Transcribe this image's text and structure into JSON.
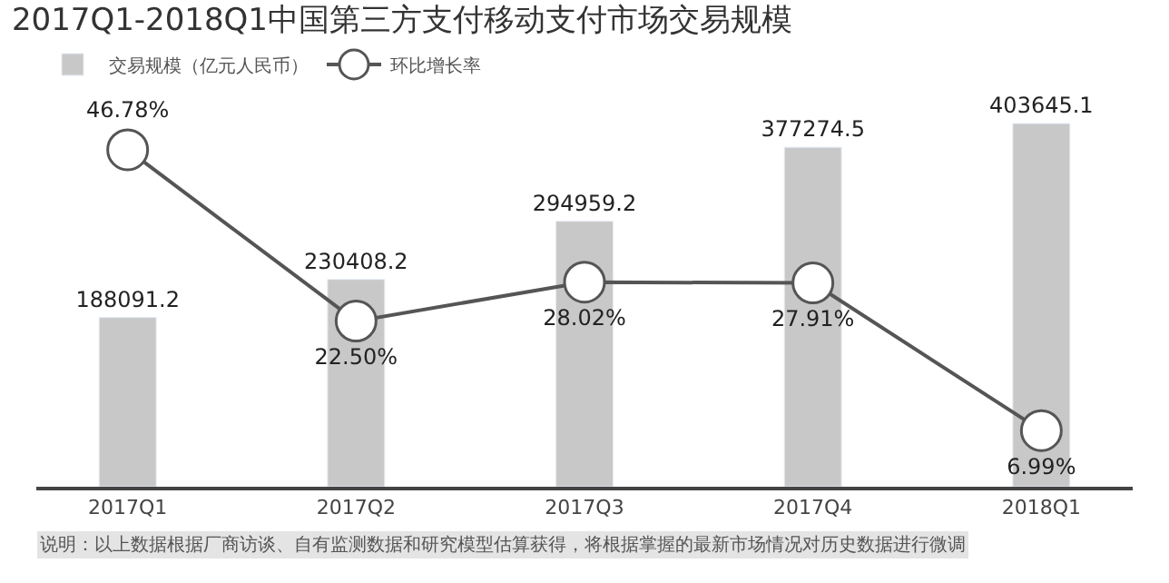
{
  "chart_data": {
    "type": "bar",
    "title": "2017Q1-2018Q1中国第三方支付移动支付市场交易规模",
    "categories": [
      "2017Q1",
      "2017Q2",
      "2017Q3",
      "2017Q4",
      "2018Q1"
    ],
    "series": [
      {
        "name": "交易规模（亿元人民币）",
        "color": "#c8c8c8",
        "values": [
          188091.2,
          230408.2,
          294959.2,
          377274.5,
          403645.1
        ],
        "value_labels": [
          "188091.2",
          "230408.2",
          "294959.2",
          "377274.5",
          "403645.1"
        ]
      },
      {
        "name": "环比增长率",
        "type": "line",
        "axis": "y2",
        "color": "#555555",
        "values": [
          46.78,
          22.5,
          28.02,
          27.91,
          6.99
        ],
        "value_labels": [
          "46.78%",
          "22.50%",
          "28.02%",
          "27.91%",
          "6.99%"
        ]
      }
    ],
    "marker": "circle",
    "legend": "top left",
    "annotations": [
      "说明：以上数据根据厂商访谈、自有监测数据和研究模型估算获得，将根据掌握的最新市场情况对历史数据进行微调"
    ]
  }
}
